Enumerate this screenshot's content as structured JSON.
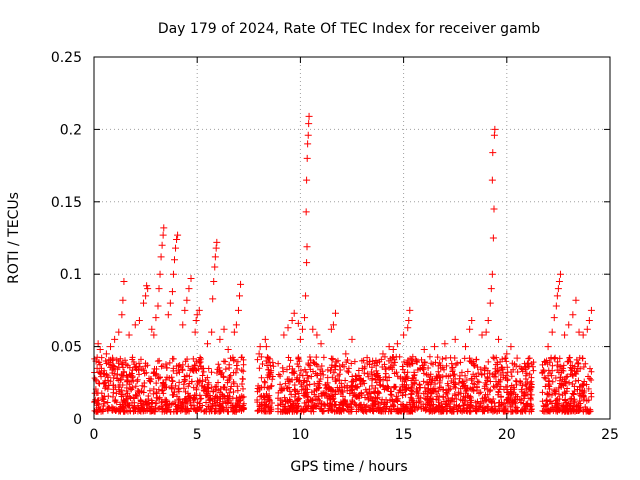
{
  "chart_data": {
    "type": "scatter",
    "title": "Day 179 of 2024, Rate Of TEC Index for receiver gamb",
    "xlabel": "GPS time / hours",
    "ylabel": "ROTI / TECUs",
    "xlim": [
      0,
      25
    ],
    "ylim": [
      0,
      0.25
    ],
    "xticks": [
      0,
      5,
      10,
      15,
      20,
      25
    ],
    "xtick_labels": [
      "0",
      "5",
      "10",
      "15",
      "20",
      "25"
    ],
    "yticks": [
      0,
      0.05,
      0.1,
      0.15,
      0.2,
      0.25
    ],
    "ytick_labels": [
      "0",
      "0.05",
      "0.1",
      "0.15",
      "0.2",
      "0.25"
    ],
    "grid": true,
    "marker": "+",
    "color": "#ff0000",
    "series": [
      {
        "name": "ROTI",
        "points": [
          [
            0.1,
            0.04
          ],
          [
            0.2,
            0.052
          ],
          [
            0.3,
            0.048
          ],
          [
            0.15,
            0.035
          ],
          [
            0.6,
            0.045
          ],
          [
            0.8,
            0.05
          ],
          [
            0.9,
            0.042
          ],
          [
            1.0,
            0.055
          ],
          [
            1.2,
            0.06
          ],
          [
            1.35,
            0.072
          ],
          [
            1.4,
            0.082
          ],
          [
            1.45,
            0.095
          ],
          [
            1.7,
            0.058
          ],
          [
            2.0,
            0.065
          ],
          [
            2.2,
            0.068
          ],
          [
            2.4,
            0.08
          ],
          [
            2.5,
            0.085
          ],
          [
            2.55,
            0.092
          ],
          [
            2.6,
            0.09
          ],
          [
            2.8,
            0.062
          ],
          [
            2.9,
            0.058
          ],
          [
            3.0,
            0.07
          ],
          [
            3.1,
            0.078
          ],
          [
            3.15,
            0.09
          ],
          [
            3.2,
            0.1
          ],
          [
            3.25,
            0.112
          ],
          [
            3.3,
            0.12
          ],
          [
            3.35,
            0.127
          ],
          [
            3.38,
            0.132
          ],
          [
            3.6,
            0.072
          ],
          [
            3.7,
            0.08
          ],
          [
            3.8,
            0.088
          ],
          [
            3.85,
            0.1
          ],
          [
            3.9,
            0.11
          ],
          [
            3.95,
            0.118
          ],
          [
            4.0,
            0.124
          ],
          [
            4.05,
            0.127
          ],
          [
            4.3,
            0.065
          ],
          [
            4.4,
            0.075
          ],
          [
            4.5,
            0.082
          ],
          [
            4.6,
            0.09
          ],
          [
            4.7,
            0.097
          ],
          [
            4.9,
            0.06
          ],
          [
            4.95,
            0.068
          ],
          [
            5.0,
            0.072
          ],
          [
            5.1,
            0.075
          ],
          [
            5.5,
            0.052
          ],
          [
            5.7,
            0.06
          ],
          [
            5.75,
            0.083
          ],
          [
            5.8,
            0.095
          ],
          [
            5.85,
            0.105
          ],
          [
            5.88,
            0.112
          ],
          [
            5.92,
            0.118
          ],
          [
            5.95,
            0.122
          ],
          [
            6.1,
            0.055
          ],
          [
            6.3,
            0.062
          ],
          [
            6.5,
            0.048
          ],
          [
            6.8,
            0.06
          ],
          [
            6.9,
            0.065
          ],
          [
            7.0,
            0.075
          ],
          [
            7.05,
            0.085
          ],
          [
            7.1,
            0.093
          ],
          [
            8.0,
            0.045
          ],
          [
            8.05,
            0.05
          ],
          [
            8.3,
            0.055
          ],
          [
            8.35,
            0.05
          ],
          [
            9.2,
            0.058
          ],
          [
            9.4,
            0.063
          ],
          [
            9.6,
            0.068
          ],
          [
            9.7,
            0.073
          ],
          [
            9.9,
            0.066
          ],
          [
            10.0,
            0.055
          ],
          [
            10.1,
            0.062
          ],
          [
            10.2,
            0.07
          ],
          [
            10.25,
            0.085
          ],
          [
            10.3,
            0.108
          ],
          [
            10.32,
            0.119
          ],
          [
            10.28,
            0.143
          ],
          [
            10.3,
            0.165
          ],
          [
            10.33,
            0.18
          ],
          [
            10.35,
            0.19
          ],
          [
            10.38,
            0.196
          ],
          [
            10.4,
            0.204
          ],
          [
            10.42,
            0.209
          ],
          [
            10.6,
            0.062
          ],
          [
            10.8,
            0.058
          ],
          [
            11.0,
            0.052
          ],
          [
            11.5,
            0.062
          ],
          [
            11.6,
            0.065
          ],
          [
            11.7,
            0.073
          ],
          [
            12.2,
            0.045
          ],
          [
            12.5,
            0.055
          ],
          [
            13.0,
            0.035
          ],
          [
            13.5,
            0.04
          ],
          [
            14.0,
            0.045
          ],
          [
            14.3,
            0.05
          ],
          [
            14.5,
            0.048
          ],
          [
            14.7,
            0.052
          ],
          [
            15.0,
            0.058
          ],
          [
            15.2,
            0.063
          ],
          [
            15.25,
            0.068
          ],
          [
            15.3,
            0.075
          ],
          [
            16.0,
            0.048
          ],
          [
            16.5,
            0.05
          ],
          [
            17.0,
            0.052
          ],
          [
            17.5,
            0.055
          ],
          [
            18.0,
            0.05
          ],
          [
            18.2,
            0.062
          ],
          [
            18.3,
            0.068
          ],
          [
            18.8,
            0.058
          ],
          [
            19.0,
            0.06
          ],
          [
            19.1,
            0.068
          ],
          [
            19.2,
            0.08
          ],
          [
            19.25,
            0.09
          ],
          [
            19.3,
            0.1
          ],
          [
            19.35,
            0.125
          ],
          [
            19.38,
            0.145
          ],
          [
            19.3,
            0.165
          ],
          [
            19.32,
            0.184
          ],
          [
            19.4,
            0.196
          ],
          [
            19.42,
            0.2
          ],
          [
            19.6,
            0.055
          ],
          [
            20.0,
            0.045
          ],
          [
            20.2,
            0.05
          ],
          [
            20.5,
            0.042
          ],
          [
            21.0,
            0.038
          ],
          [
            22.0,
            0.05
          ],
          [
            22.2,
            0.06
          ],
          [
            22.3,
            0.07
          ],
          [
            22.4,
            0.078
          ],
          [
            22.45,
            0.085
          ],
          [
            22.5,
            0.09
          ],
          [
            22.55,
            0.095
          ],
          [
            22.6,
            0.1
          ],
          [
            22.8,
            0.058
          ],
          [
            23.0,
            0.065
          ],
          [
            23.2,
            0.072
          ],
          [
            23.35,
            0.082
          ],
          [
            23.5,
            0.06
          ],
          [
            23.7,
            0.058
          ],
          [
            23.9,
            0.062
          ],
          [
            24.0,
            0.068
          ],
          [
            24.1,
            0.075
          ]
        ]
      }
    ]
  }
}
